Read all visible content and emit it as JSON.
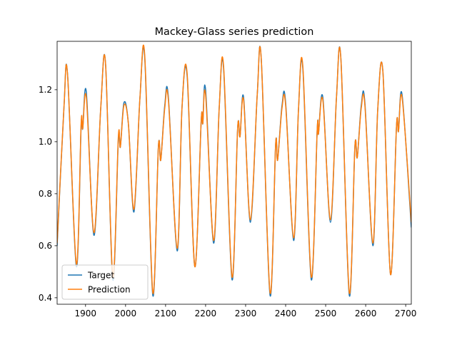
{
  "chart_data": {
    "type": "line",
    "title": "Mackey-Glass series prediction",
    "x": [
      1829,
      1846,
      1855,
      1877,
      1889,
      1893,
      1902,
      1921,
      1938,
      1950,
      1968,
      1982,
      1987,
      1996,
      2007,
      2021,
      2036,
      2048,
      2068,
      2082,
      2088,
      2098,
      2107,
      2129,
      2141,
      2154,
      2173,
      2189,
      2193,
      2200,
      2220,
      2234,
      2245,
      2266,
      2280,
      2286,
      2295,
      2312,
      2329,
      2339,
      2361,
      2375,
      2380,
      2391,
      2400,
      2420,
      2432,
      2443,
      2464,
      2479,
      2482,
      2493,
      2512,
      2527,
      2538,
      2559,
      2573,
      2579,
      2589,
      2598,
      2618,
      2630,
      2643,
      2662,
      2677,
      2682,
      2691,
      2714
    ],
    "series": [
      {
        "name": "Target",
        "color": "#1f77b4",
        "values": [
          0.6,
          1.13,
          1.26,
          0.52,
          1.06,
          1.05,
          1.19,
          0.64,
          1.13,
          1.3,
          0.47,
          1.01,
          0.98,
          1.15,
          1.07,
          0.73,
          1.17,
          1.32,
          0.41,
          0.98,
          0.93,
          1.14,
          1.17,
          0.58,
          1.13,
          1.25,
          0.52,
          1.08,
          1.07,
          1.2,
          0.61,
          1.13,
          1.28,
          0.47,
          1.05,
          1.02,
          1.17,
          0.69,
          1.18,
          1.32,
          0.41,
          0.99,
          0.93,
          1.14,
          1.15,
          0.62,
          1.12,
          1.28,
          0.47,
          1.05,
          1.03,
          1.17,
          0.69,
          1.17,
          1.32,
          0.41,
          0.98,
          0.94,
          1.14,
          1.15,
          0.6,
          1.12,
          1.27,
          0.49,
          1.06,
          1.04,
          1.18,
          0.67
        ]
      },
      {
        "name": "Prediction",
        "color": "#ff7f0e",
        "values": [
          0.61,
          1.13,
          1.26,
          0.53,
          1.07,
          1.05,
          1.17,
          0.65,
          1.13,
          1.3,
          0.48,
          1.02,
          0.98,
          1.14,
          1.07,
          0.74,
          1.17,
          1.33,
          0.42,
          0.98,
          0.93,
          1.13,
          1.16,
          0.59,
          1.13,
          1.26,
          0.52,
          1.08,
          1.07,
          1.18,
          0.62,
          1.13,
          1.29,
          0.48,
          1.05,
          1.02,
          1.16,
          0.7,
          1.18,
          1.32,
          0.42,
          0.99,
          0.93,
          1.13,
          1.14,
          0.63,
          1.12,
          1.29,
          0.48,
          1.05,
          1.03,
          1.16,
          0.7,
          1.17,
          1.32,
          0.42,
          0.98,
          0.94,
          1.13,
          1.14,
          0.61,
          1.12,
          1.27,
          0.49,
          1.06,
          1.04,
          1.17,
          0.69
        ]
      }
    ],
    "xlim": [
      1829,
      2714
    ],
    "xticks": [
      1900,
      2000,
      2100,
      2200,
      2300,
      2400,
      2500,
      2600,
      2700
    ],
    "ylim": [
      0.375,
      1.386
    ],
    "yticks": [
      0.4,
      0.6,
      0.8,
      {
        "value": 1,
        "label": "1.0"
      },
      1.2
    ],
    "grid": false,
    "legend": "lower left"
  }
}
